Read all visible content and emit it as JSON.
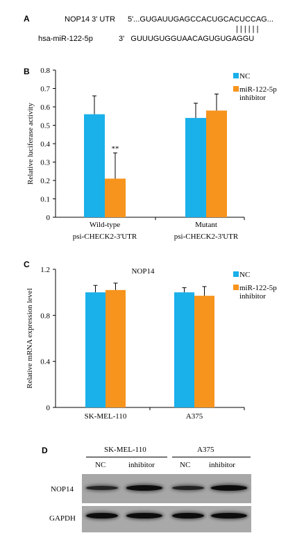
{
  "panels": {
    "a": "A",
    "b": "B",
    "c": "C",
    "d": "D"
  },
  "panel_a": {
    "line1_label": "NOP14 3' UTR",
    "line1_seq": "5'...GUGAUUGAGCCACUGCACUCCAG...",
    "pairing": "| | | | | |",
    "line2_label": "hsa-miR-122-5p",
    "line2_seq": "3'   GUUUGUGGUAACAGUGUGAGGU"
  },
  "colors": {
    "nc": "#1ab0ea",
    "inhibitor": "#f7941d",
    "error_bar": "#000000",
    "axis": "#000000"
  },
  "chart_data": [
    {
      "type": "bar",
      "panel": "B",
      "ylabel": "Relative luciferase activity",
      "ylim": [
        0,
        0.8
      ],
      "yticks": [
        "0",
        "0.1",
        "0.2",
        "0.3",
        "0.4",
        "0.5",
        "0.6",
        "0.7",
        "0.8"
      ],
      "categories": [
        [
          "Wild-type",
          "psi-CHECK2-3'UTR"
        ],
        [
          "Mutant",
          "psi-CHECK2-3'UTR"
        ]
      ],
      "series": [
        {
          "name": "NC",
          "values": [
            0.56,
            0.54
          ],
          "errors": [
            0.1,
            0.08
          ]
        },
        {
          "name": "miR-122-5p inhibitor",
          "values": [
            0.21,
            0.58
          ],
          "errors": [
            0.14,
            0.09
          ]
        }
      ],
      "annotations": [
        {
          "series": 1,
          "category": 0,
          "text": "**"
        }
      ],
      "legend": "top-right",
      "legend_labels": [
        [
          "NC"
        ],
        [
          "miR-122-5p",
          "inhibitor"
        ]
      ]
    },
    {
      "type": "bar",
      "panel": "C",
      "title": "NOP14",
      "ylabel": "Relative mRNA expression level",
      "ylim": [
        0,
        1.2
      ],
      "yticks": [
        "0",
        "0.4",
        "0.8",
        "1.2"
      ],
      "categories": [
        [
          "SK-MEL-110"
        ],
        [
          "A375"
        ]
      ],
      "series": [
        {
          "name": "NC",
          "values": [
            1.0,
            1.0
          ],
          "errors": [
            0.06,
            0.04
          ]
        },
        {
          "name": "miR-122-5p inhibitor",
          "values": [
            1.02,
            0.97
          ],
          "errors": [
            0.06,
            0.08
          ]
        }
      ],
      "annotations": [],
      "legend": "top-right",
      "legend_labels": [
        [
          "NC"
        ],
        [
          "miR-122-5p",
          "inhibitor"
        ]
      ]
    }
  ],
  "panel_d": {
    "groups": [
      "SK-MEL-110",
      "A375"
    ],
    "lanes": [
      "NC",
      "inhibitor",
      "NC",
      "inhibitor"
    ],
    "rows": [
      {
        "label": "NOP14",
        "intensities": [
          0.55,
          0.95,
          0.6,
          0.95
        ]
      },
      {
        "label": "GAPDH",
        "intensities": [
          0.95,
          0.95,
          0.95,
          0.95
        ]
      }
    ]
  }
}
